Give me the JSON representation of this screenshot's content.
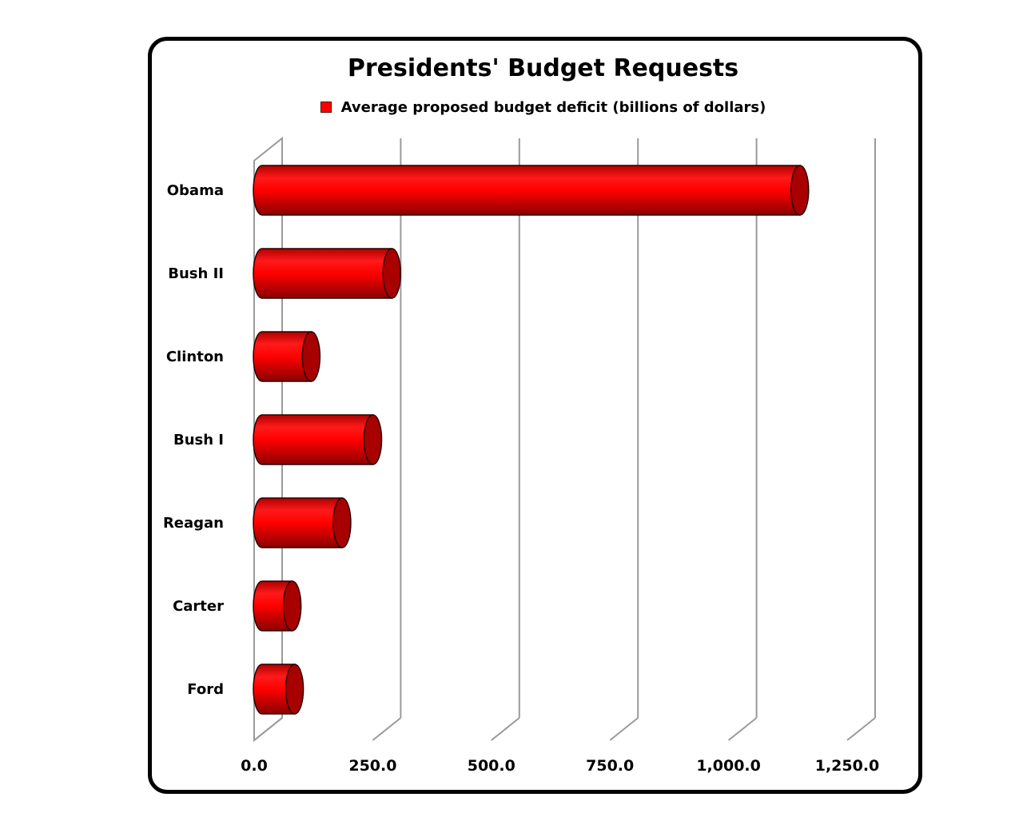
{
  "chart_data": {
    "type": "bar",
    "orientation": "horizontal",
    "style": "3d-cylinder",
    "title": "Presidents' Budget Requests",
    "series": [
      {
        "name": "Average proposed budget deficit (billions of dollars)",
        "color": "#ff0000",
        "values": [
          1130,
          270,
          100,
          230,
          165,
          60,
          65
        ]
      }
    ],
    "categories": [
      "Obama",
      "Bush II",
      "Clinton",
      "Bush I",
      "Reagan",
      "Carter",
      "Ford"
    ],
    "xlim": [
      0,
      1250
    ],
    "x_ticks": [
      "0.0",
      "250.0",
      "500.0",
      "750.0",
      "1,000.0",
      "1,250.0"
    ],
    "grid": true,
    "legend_position": "top"
  }
}
